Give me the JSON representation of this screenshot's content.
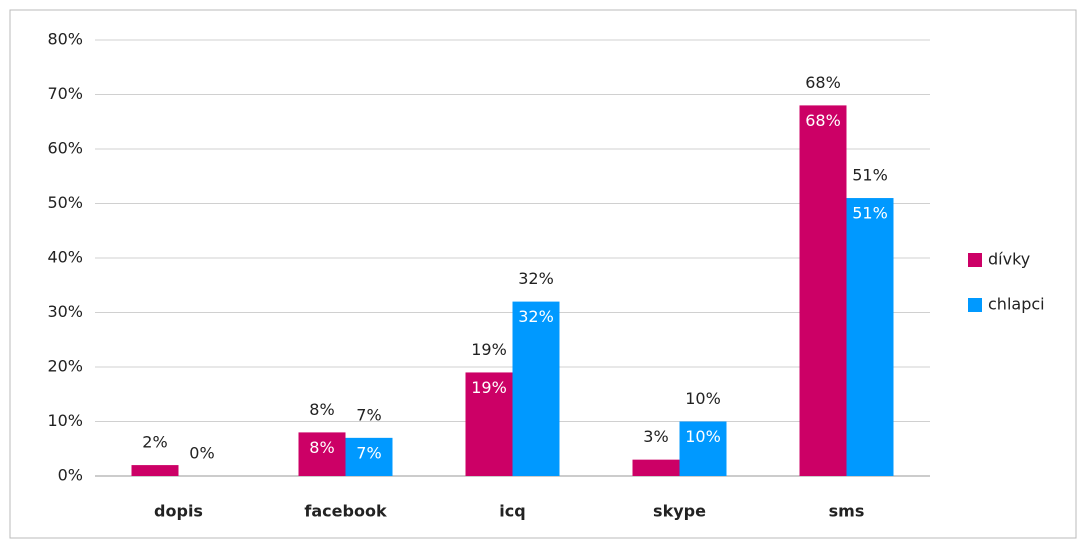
{
  "chart_data": {
    "type": "bar",
    "categories": [
      "dopis",
      "facebook",
      "icq",
      "skype",
      "sms"
    ],
    "series": [
      {
        "name": "dívky",
        "color": "#cc0066",
        "values": [
          2,
          8,
          19,
          3,
          68
        ],
        "value_labels": [
          "2%",
          "8%",
          "19%",
          "3%",
          "68%"
        ]
      },
      {
        "name": "chlapci",
        "color": "#0099ff",
        "values": [
          0,
          7,
          32,
          10,
          51
        ],
        "value_labels": [
          "0%",
          "7%",
          "32%",
          "10%",
          "51%"
        ]
      }
    ],
    "ylim": [
      0,
      80
    ],
    "yticks": [
      {
        "value": 0,
        "label": "0%"
      },
      {
        "value": 10,
        "label": "10%"
      },
      {
        "value": 20,
        "label": "20%"
      },
      {
        "value": 30,
        "label": "30%"
      },
      {
        "value": 40,
        "label": "40%"
      },
      {
        "value": 50,
        "label": "50%"
      },
      {
        "value": 60,
        "label": "60%"
      },
      {
        "value": 70,
        "label": "70%"
      },
      {
        "value": 80,
        "label": "80%"
      }
    ],
    "grid": true,
    "legend": "right"
  }
}
